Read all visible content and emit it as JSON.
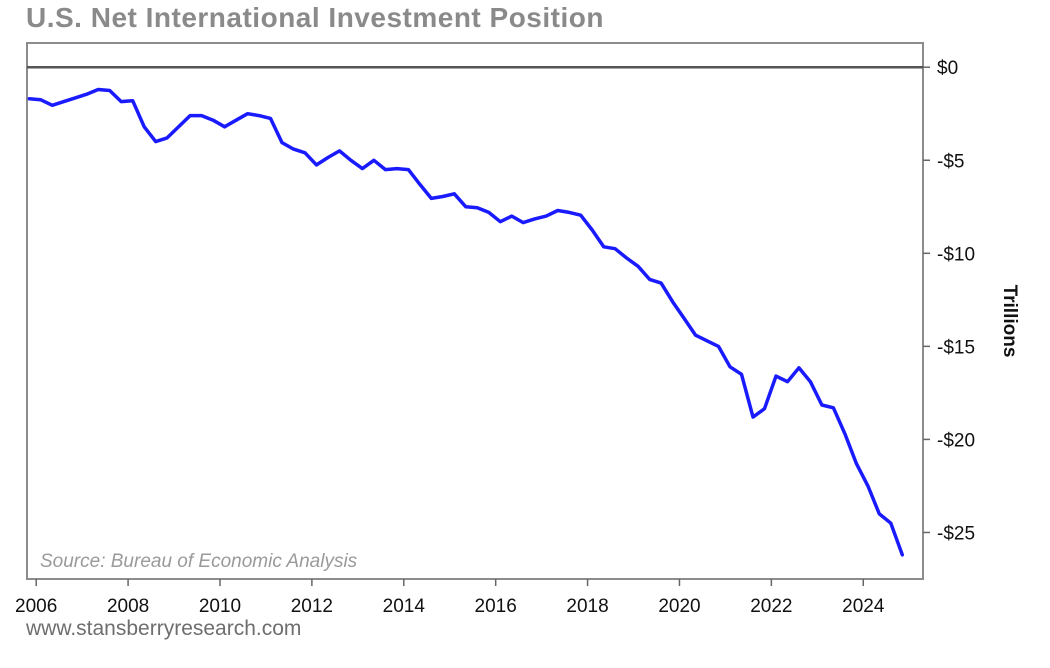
{
  "title": "U.S. Net International Investment Position",
  "source": "Source: Bureau of Economic Analysis",
  "footer": "www.stansberryresearch.com",
  "chart_data": {
    "type": "line",
    "title": "U.S. Net International Investment Position",
    "ylabel": "Trillions",
    "xlabel": "",
    "xlim": [
      2005.8,
      2025.3
    ],
    "ylim": [
      -27.5,
      1.3
    ],
    "x_ticks": [
      2006,
      2008,
      2010,
      2012,
      2014,
      2016,
      2018,
      2020,
      2022,
      2024
    ],
    "x_tick_labels": [
      "2006",
      "2008",
      "2010",
      "2012",
      "2014",
      "2016",
      "2018",
      "2020",
      "2022",
      "2024"
    ],
    "y_ticks": [
      0,
      -5,
      -10,
      -15,
      -20,
      -25
    ],
    "y_tick_labels": [
      "$0",
      "-$5",
      "-$10",
      "-$15",
      "-$20",
      "-$25"
    ],
    "y_axis_position": "right",
    "grid": false,
    "reference_line": 0,
    "line_color": "#1a1aff",
    "reference_color": "#555555",
    "series": [
      {
        "x": [
          2005.85,
          2006.1,
          2006.35,
          2006.6,
          2006.85,
          2007.1,
          2007.35,
          2007.6,
          2007.85,
          2008.1,
          2008.35,
          2008.6,
          2008.85,
          2009.1,
          2009.35,
          2009.6,
          2009.85,
          2010.1,
          2010.35,
          2010.6,
          2010.85,
          2011.1,
          2011.35,
          2011.6,
          2011.85,
          2012.1,
          2012.35,
          2012.6,
          2012.85,
          2013.1,
          2013.35,
          2013.6,
          2013.85,
          2014.1,
          2014.35,
          2014.6,
          2014.85,
          2015.1,
          2015.35,
          2015.6,
          2015.85,
          2016.1,
          2016.35,
          2016.6,
          2016.85,
          2017.1,
          2017.35,
          2017.6,
          2017.85,
          2018.1,
          2018.35,
          2018.6,
          2018.85,
          2019.1,
          2019.35,
          2019.6,
          2019.85,
          2020.1,
          2020.35,
          2020.6,
          2020.85,
          2021.1,
          2021.35,
          2021.6,
          2021.85,
          2022.1,
          2022.35,
          2022.6,
          2022.85,
          2023.1,
          2023.35,
          2023.6,
          2023.85,
          2024.1,
          2024.35,
          2024.6,
          2024.85
        ],
        "values": [
          -1.7,
          -1.75,
          -2.05,
          -1.85,
          -1.65,
          -1.45,
          -1.2,
          -1.25,
          -1.85,
          -1.8,
          -3.2,
          -4.0,
          -3.8,
          -3.2,
          -2.6,
          -2.6,
          -2.85,
          -3.2,
          -2.85,
          -2.5,
          -2.6,
          -2.75,
          -4.05,
          -4.4,
          -4.6,
          -5.25,
          -4.85,
          -4.5,
          -5.0,
          -5.45,
          -5.0,
          -5.5,
          -5.45,
          -5.5,
          -6.3,
          -7.05,
          -6.95,
          -6.8,
          -7.5,
          -7.55,
          -7.8,
          -8.3,
          -8.0,
          -8.35,
          -8.15,
          -8.0,
          -7.7,
          -7.8,
          -7.95,
          -8.75,
          -9.65,
          -9.75,
          -10.25,
          -10.7,
          -11.4,
          -11.6,
          -12.6,
          -13.5,
          -14.4,
          -14.7,
          -15.0,
          -16.1,
          -16.5,
          -18.8,
          -18.35,
          -16.6,
          -16.9,
          -16.15,
          -16.9,
          -18.15,
          -18.3,
          -19.7,
          -21.3,
          -22.5,
          -24.0,
          -24.5,
          -26.2
        ]
      }
    ]
  }
}
